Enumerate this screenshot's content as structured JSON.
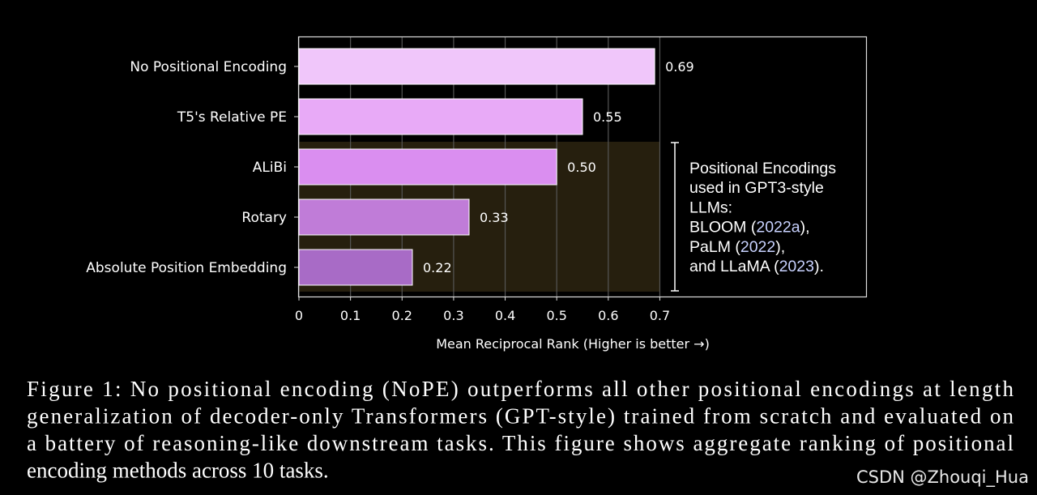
{
  "chart_data": {
    "type": "bar",
    "orientation": "horizontal",
    "categories": [
      "No Positional Encoding",
      "T5's Relative PE",
      "ALiBi",
      "Rotary",
      "Absolute Position Embedding"
    ],
    "values": [
      0.69,
      0.55,
      0.5,
      0.33,
      0.22
    ],
    "value_labels": [
      "0.69",
      "0.55",
      "0.50",
      "0.33",
      "0.22"
    ],
    "colors": [
      "#f0c6fa",
      "#e8aaf7",
      "#da8ef0",
      "#c07cd8",
      "#a86bc6"
    ],
    "xlim": [
      0,
      1.1
    ],
    "xticks": [
      0,
      0.1,
      0.2,
      0.3,
      0.4,
      0.5,
      0.6,
      0.7
    ],
    "xlabel": "Mean Reciprocal Rank (Higher is better →)",
    "grid": true,
    "annotation": [
      [
        "Positional Encodings"
      ],
      [
        "used in GPT3-style"
      ],
      [
        "LLMs:"
      ],
      [
        "BLOOM (",
        "2022a",
        "),"
      ],
      [
        "PaLM (",
        "2022",
        "),"
      ],
      [
        "and LLaMA (",
        "2023",
        ")."
      ]
    ]
  },
  "caption": [
    "Figure 1: No positional encoding (NoPE) outperforms all other positional encodings at length",
    "generalization of decoder-only Transformers (GPT-style) trained from scratch and evaluated on",
    "a battery of reasoning-like downstream tasks. This figure shows aggregate ranking of positional",
    "encoding methods across 10 tasks."
  ],
  "watermark": "CSDN @Zhouqi_Hua"
}
